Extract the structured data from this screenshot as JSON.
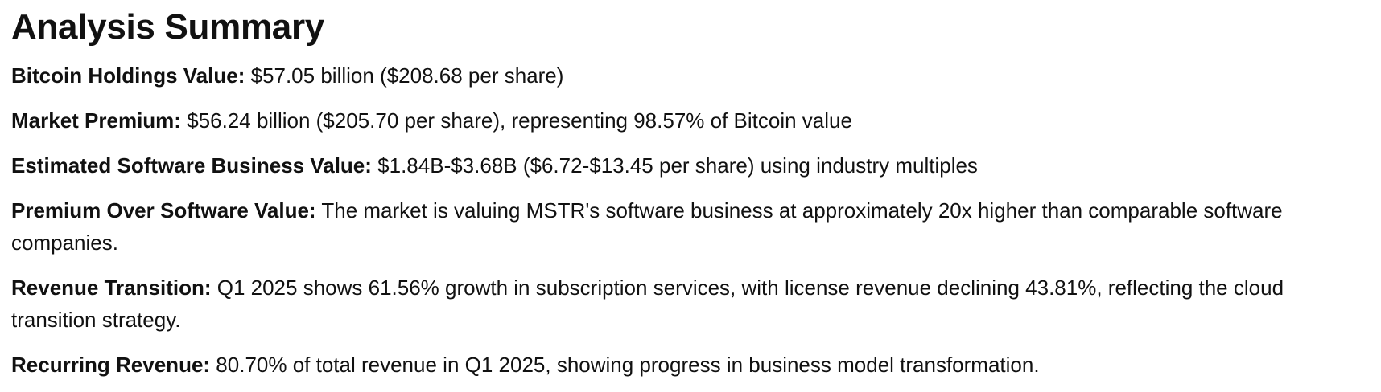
{
  "title": "Analysis Summary",
  "items": [
    {
      "label": "Bitcoin Holdings Value:",
      "text": " $57.05 billion ($208.68 per share)"
    },
    {
      "label": "Market Premium:",
      "text": " $56.24 billion ($205.70 per share), representing 98.57% of Bitcoin value"
    },
    {
      "label": "Estimated Software Business Value:",
      "text": " $1.84B-$3.68B ($6.72-$13.45 per share) using industry multiples"
    },
    {
      "label": "Premium Over Software Value:",
      "text": " The market is valuing MSTR's software business at approximately 20x higher than comparable software companies."
    },
    {
      "label": "Revenue Transition:",
      "text": " Q1 2025 shows 61.56% growth in subscription services, with license revenue declining 43.81%, reflecting the cloud transition strategy."
    },
    {
      "label": "Recurring Revenue:",
      "text": " 80.70% of total revenue in Q1 2025, showing progress in business model transformation."
    }
  ]
}
